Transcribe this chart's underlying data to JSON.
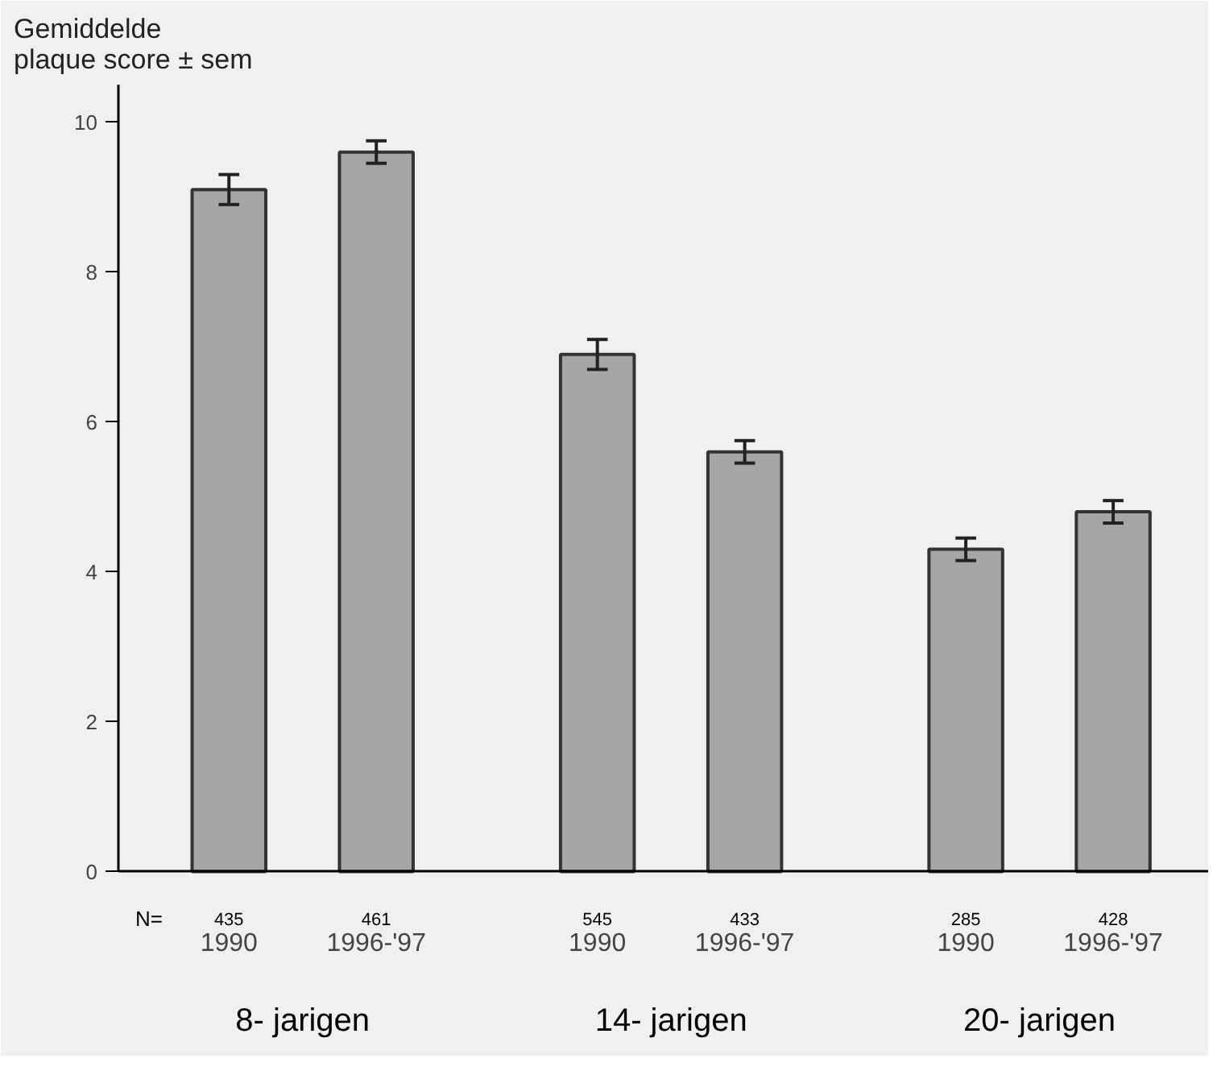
{
  "chart_data": {
    "type": "bar",
    "ylabel": "Gemiddelde\nplaque score ± sem",
    "categories": [
      "1990",
      "1996-'97",
      "1990",
      "1996-'97",
      "1990",
      "1996-'97"
    ],
    "values": [
      9.1,
      9.6,
      6.9,
      5.6,
      4.3,
      4.8
    ],
    "errors": [
      0.2,
      0.15,
      0.2,
      0.15,
      0.15,
      0.15
    ],
    "color": "#a6a6a6",
    "ylim": [
      0,
      10.5
    ],
    "yticks": [
      0,
      2,
      4,
      6,
      8,
      10
    ],
    "annotations": [
      "N=",
      "435",
      "461",
      "545",
      "433",
      "285",
      "428",
      "8- jarigen",
      "14- jarigen",
      "20- jarigen"
    ]
  }
}
